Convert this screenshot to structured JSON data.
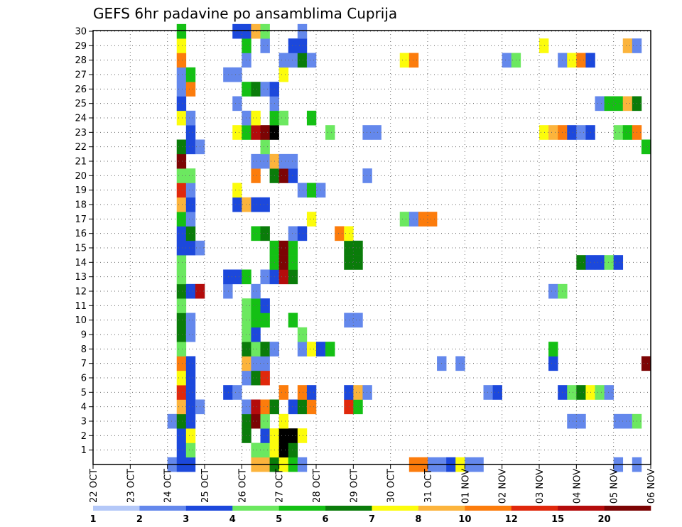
{
  "chart_data": {
    "type": "heatmap",
    "title": "GEFS 6hr padavine po ansamblima Cuprija",
    "xlabel": "",
    "ylabel": "",
    "x_ticks": [
      "22 OCT",
      "23 OCT",
      "24 OCT",
      "25 OCT",
      "26 OCT",
      "27 OCT",
      "28 OCT",
      "29 OCT",
      "30 OCT",
      "31 OCT",
      "01 NOV",
      "02 NOV",
      "03 NOV",
      "04 NOV",
      "05 NOV",
      "06 NOV"
    ],
    "y_ticks": [
      1,
      2,
      3,
      4,
      5,
      6,
      7,
      8,
      9,
      10,
      11,
      12,
      13,
      14,
      15,
      16,
      17,
      18,
      19,
      20,
      21,
      22,
      23,
      24,
      25,
      26,
      27,
      28,
      29,
      30
    ],
    "x_range_steps": [
      0,
      60
    ],
    "y_range": [
      0,
      30
    ],
    "grid": true,
    "colorbar": {
      "labels": [
        "1",
        "2",
        "3",
        "4",
        "5",
        "6",
        "7",
        "8",
        "10",
        "12",
        "15",
        "20"
      ],
      "colors": [
        "#b4c8f8",
        "#6488ec",
        "#1c48dc",
        "#6ce860",
        "#14c014",
        "#0a7c0a",
        "#fcfc0c",
        "#fcb43c",
        "#fc7c0c",
        "#e0280c",
        "#b40c0c",
        "#7c0404"
      ]
    },
    "cells": [
      [
        8,
        0,
        1
      ],
      [
        9,
        0,
        2
      ],
      [
        10,
        0,
        2
      ],
      [
        17,
        0,
        7
      ],
      [
        18,
        0,
        7
      ],
      [
        19,
        0,
        5
      ],
      [
        20,
        0,
        6
      ],
      [
        21,
        0,
        4
      ],
      [
        22,
        0,
        1
      ],
      [
        34,
        0,
        8
      ],
      [
        35,
        0,
        8
      ],
      [
        36,
        0,
        1
      ],
      [
        37,
        0,
        1
      ],
      [
        38,
        0,
        2
      ],
      [
        39,
        0,
        6
      ],
      [
        40,
        0,
        1
      ],
      [
        41,
        0,
        1
      ],
      [
        56,
        0,
        1
      ],
      [
        58,
        0,
        1
      ],
      [
        9,
        1,
        2
      ],
      [
        10,
        1,
        3
      ],
      [
        17,
        1,
        3
      ],
      [
        18,
        1,
        3
      ],
      [
        19,
        1,
        6
      ],
      [
        20,
        1,
        12
      ],
      [
        21,
        1,
        5
      ],
      [
        9,
        2,
        2
      ],
      [
        10,
        2,
        6
      ],
      [
        16,
        2,
        5
      ],
      [
        18,
        2,
        2
      ],
      [
        19,
        2,
        6
      ],
      [
        20,
        2,
        12
      ],
      [
        21,
        2,
        12
      ],
      [
        22,
        2,
        6
      ],
      [
        8,
        3,
        1
      ],
      [
        9,
        3,
        5
      ],
      [
        10,
        3,
        2
      ],
      [
        16,
        3,
        5
      ],
      [
        17,
        3,
        11
      ],
      [
        18,
        3,
        3
      ],
      [
        20,
        3,
        6
      ],
      [
        51,
        3,
        1
      ],
      [
        52,
        3,
        1
      ],
      [
        56,
        3,
        1
      ],
      [
        57,
        3,
        1
      ],
      [
        58,
        3,
        3
      ],
      [
        9,
        4,
        7
      ],
      [
        10,
        4,
        2
      ],
      [
        11,
        4,
        1
      ],
      [
        16,
        4,
        1
      ],
      [
        17,
        4,
        10
      ],
      [
        18,
        4,
        8
      ],
      [
        19,
        4,
        5
      ],
      [
        21,
        4,
        2
      ],
      [
        22,
        4,
        5
      ],
      [
        23,
        4,
        8
      ],
      [
        27,
        4,
        9
      ],
      [
        28,
        4,
        4
      ],
      [
        9,
        5,
        9
      ],
      [
        10,
        5,
        2
      ],
      [
        14,
        5,
        2
      ],
      [
        15,
        5,
        1
      ],
      [
        20,
        5,
        8
      ],
      [
        22,
        5,
        8
      ],
      [
        23,
        5,
        2
      ],
      [
        27,
        5,
        2
      ],
      [
        28,
        5,
        7
      ],
      [
        29,
        5,
        1
      ],
      [
        42,
        5,
        1
      ],
      [
        43,
        5,
        2
      ],
      [
        50,
        5,
        2
      ],
      [
        51,
        5,
        3
      ],
      [
        52,
        5,
        5
      ],
      [
        53,
        5,
        6
      ],
      [
        54,
        5,
        3
      ],
      [
        55,
        5,
        1
      ],
      [
        9,
        6,
        6
      ],
      [
        10,
        6,
        2
      ],
      [
        16,
        6,
        1
      ],
      [
        17,
        6,
        5
      ],
      [
        18,
        6,
        9
      ],
      [
        9,
        7,
        8
      ],
      [
        10,
        7,
        2
      ],
      [
        16,
        7,
        7
      ],
      [
        17,
        7,
        1
      ],
      [
        18,
        7,
        1
      ],
      [
        37,
        7,
        1
      ],
      [
        39,
        7,
        1
      ],
      [
        49,
        7,
        2
      ],
      [
        59,
        7,
        11
      ],
      [
        9,
        8,
        3
      ],
      [
        16,
        8,
        5
      ],
      [
        17,
        8,
        3
      ],
      [
        18,
        8,
        5
      ],
      [
        19,
        8,
        1
      ],
      [
        22,
        8,
        1
      ],
      [
        23,
        8,
        6
      ],
      [
        24,
        8,
        2
      ],
      [
        25,
        8,
        4
      ],
      [
        49,
        8,
        4
      ],
      [
        9,
        9,
        5
      ],
      [
        10,
        9,
        1
      ],
      [
        16,
        9,
        3
      ],
      [
        17,
        9,
        2
      ],
      [
        22,
        9,
        3
      ],
      [
        9,
        10,
        5
      ],
      [
        10,
        10,
        1
      ],
      [
        16,
        10,
        3
      ],
      [
        17,
        10,
        4
      ],
      [
        18,
        10,
        4
      ],
      [
        21,
        10,
        4
      ],
      [
        27,
        10,
        1
      ],
      [
        28,
        10,
        1
      ],
      [
        9,
        11,
        3
      ],
      [
        16,
        11,
        3
      ],
      [
        17,
        11,
        4
      ],
      [
        18,
        11,
        2
      ],
      [
        9,
        12,
        5
      ],
      [
        10,
        12,
        2
      ],
      [
        11,
        12,
        10
      ],
      [
        14,
        12,
        1
      ],
      [
        17,
        12,
        1
      ],
      [
        49,
        12,
        1
      ],
      [
        50,
        12,
        3
      ],
      [
        9,
        13,
        3
      ],
      [
        14,
        13,
        2
      ],
      [
        15,
        13,
        2
      ],
      [
        16,
        13,
        4
      ],
      [
        18,
        13,
        1
      ],
      [
        19,
        13,
        2
      ],
      [
        20,
        13,
        10
      ],
      [
        21,
        13,
        5
      ],
      [
        9,
        14,
        3
      ],
      [
        19,
        14,
        4
      ],
      [
        20,
        14,
        11
      ],
      [
        21,
        14,
        4
      ],
      [
        27,
        14,
        5
      ],
      [
        28,
        14,
        5
      ],
      [
        52,
        14,
        5
      ],
      [
        53,
        14,
        2
      ],
      [
        54,
        14,
        2
      ],
      [
        55,
        14,
        3
      ],
      [
        56,
        14,
        2
      ],
      [
        9,
        15,
        2
      ],
      [
        10,
        15,
        2
      ],
      [
        11,
        15,
        1
      ],
      [
        19,
        15,
        4
      ],
      [
        20,
        15,
        11
      ],
      [
        21,
        15,
        4
      ],
      [
        27,
        15,
        5
      ],
      [
        28,
        15,
        5
      ],
      [
        9,
        16,
        2
      ],
      [
        10,
        16,
        5
      ],
      [
        17,
        16,
        4
      ],
      [
        18,
        16,
        5
      ],
      [
        21,
        16,
        1
      ],
      [
        22,
        16,
        2
      ],
      [
        26,
        16,
        8
      ],
      [
        27,
        16,
        6
      ],
      [
        9,
        17,
        4
      ],
      [
        10,
        17,
        1
      ],
      [
        23,
        17,
        6
      ],
      [
        33,
        17,
        3
      ],
      [
        34,
        17,
        1
      ],
      [
        35,
        17,
        8
      ],
      [
        36,
        17,
        8
      ],
      [
        9,
        18,
        7
      ],
      [
        10,
        18,
        2
      ],
      [
        15,
        18,
        2
      ],
      [
        16,
        18,
        7
      ],
      [
        17,
        18,
        2
      ],
      [
        18,
        18,
        2
      ],
      [
        9,
        19,
        9
      ],
      [
        10,
        19,
        1
      ],
      [
        15,
        19,
        6
      ],
      [
        22,
        19,
        1
      ],
      [
        23,
        19,
        4
      ],
      [
        24,
        19,
        1
      ],
      [
        9,
        20,
        3
      ],
      [
        10,
        20,
        3
      ],
      [
        17,
        20,
        8
      ],
      [
        19,
        20,
        5
      ],
      [
        20,
        20,
        11
      ],
      [
        21,
        20,
        2
      ],
      [
        29,
        20,
        1
      ],
      [
        9,
        21,
        11
      ],
      [
        17,
        21,
        1
      ],
      [
        18,
        21,
        1
      ],
      [
        19,
        21,
        7
      ],
      [
        20,
        21,
        1
      ],
      [
        21,
        21,
        1
      ],
      [
        9,
        22,
        5
      ],
      [
        10,
        22,
        2
      ],
      [
        11,
        22,
        1
      ],
      [
        18,
        22,
        3
      ],
      [
        59,
        22,
        4
      ],
      [
        10,
        23,
        2
      ],
      [
        15,
        23,
        6
      ],
      [
        16,
        23,
        4
      ],
      [
        17,
        23,
        10
      ],
      [
        18,
        23,
        11
      ],
      [
        19,
        23,
        12
      ],
      [
        25,
        23,
        3
      ],
      [
        29,
        23,
        1
      ],
      [
        30,
        23,
        1
      ],
      [
        48,
        23,
        6
      ],
      [
        49,
        23,
        7
      ],
      [
        50,
        23,
        8
      ],
      [
        51,
        23,
        2
      ],
      [
        52,
        23,
        1
      ],
      [
        53,
        23,
        2
      ],
      [
        56,
        23,
        3
      ],
      [
        57,
        23,
        4
      ],
      [
        58,
        23,
        8
      ],
      [
        9,
        24,
        6
      ],
      [
        10,
        24,
        1
      ],
      [
        16,
        24,
        1
      ],
      [
        17,
        24,
        6
      ],
      [
        19,
        24,
        4
      ],
      [
        20,
        24,
        3
      ],
      [
        23,
        24,
        4
      ],
      [
        9,
        25,
        2
      ],
      [
        15,
        25,
        1
      ],
      [
        19,
        25,
        1
      ],
      [
        54,
        25,
        1
      ],
      [
        55,
        25,
        4
      ],
      [
        56,
        25,
        4
      ],
      [
        57,
        25,
        7
      ],
      [
        58,
        25,
        5
      ],
      [
        9,
        26,
        1
      ],
      [
        10,
        26,
        8
      ],
      [
        16,
        26,
        4
      ],
      [
        17,
        26,
        5
      ],
      [
        18,
        26,
        1
      ],
      [
        19,
        26,
        2
      ],
      [
        9,
        27,
        1
      ],
      [
        10,
        27,
        4
      ],
      [
        14,
        27,
        1
      ],
      [
        15,
        27,
        1
      ],
      [
        20,
        27,
        6
      ],
      [
        9,
        28,
        8
      ],
      [
        16,
        28,
        1
      ],
      [
        20,
        28,
        1
      ],
      [
        21,
        28,
        1
      ],
      [
        22,
        28,
        5
      ],
      [
        23,
        28,
        1
      ],
      [
        33,
        28,
        6
      ],
      [
        34,
        28,
        8
      ],
      [
        44,
        28,
        1
      ],
      [
        45,
        28,
        3
      ],
      [
        50,
        28,
        1
      ],
      [
        51,
        28,
        6
      ],
      [
        52,
        28,
        8
      ],
      [
        53,
        28,
        2
      ],
      [
        9,
        29,
        6
      ],
      [
        16,
        29,
        4
      ],
      [
        18,
        29,
        1
      ],
      [
        21,
        29,
        2
      ],
      [
        22,
        29,
        2
      ],
      [
        48,
        29,
        6
      ],
      [
        57,
        29,
        7
      ],
      [
        58,
        29,
        1
      ],
      [
        9,
        30,
        4
      ],
      [
        15,
        30,
        2
      ],
      [
        16,
        30,
        2
      ],
      [
        17,
        30,
        7
      ],
      [
        18,
        30,
        3
      ],
      [
        22,
        30,
        1
      ]
    ]
  }
}
